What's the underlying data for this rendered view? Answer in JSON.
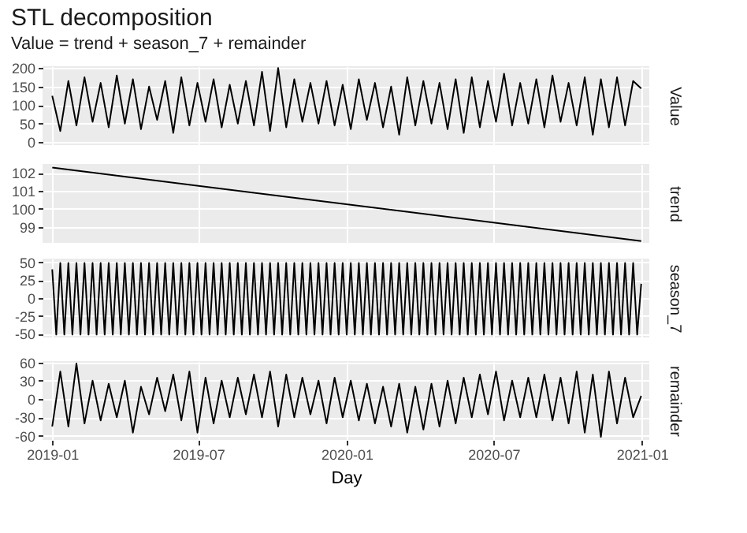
{
  "chart_data": [
    {
      "type": "line",
      "title": "STL decomposition",
      "subtitle": "Value = trend + season_7 + remainder",
      "ylabel": "Value",
      "xlim": [
        "2018-12-20",
        "2021-01-10"
      ],
      "xticks": [
        "2019-01",
        "2019-07",
        "2020-01",
        "2020-07",
        "2021-01"
      ],
      "ylim": [
        -8,
        205
      ],
      "yticks": [
        0,
        50,
        100,
        150,
        200
      ],
      "grid": true,
      "tick_labels": "y",
      "x": [
        "2019-01-01",
        "2019-01-11",
        "2019-01-21",
        "2019-01-31",
        "2019-02-10",
        "2019-02-20",
        "2019-03-02",
        "2019-03-12",
        "2019-03-22",
        "2019-04-01",
        "2019-04-11",
        "2019-04-21",
        "2019-05-01",
        "2019-05-11",
        "2019-05-21",
        "2019-05-31",
        "2019-06-10",
        "2019-06-20",
        "2019-06-30",
        "2019-07-10",
        "2019-07-20",
        "2019-07-30",
        "2019-08-09",
        "2019-08-19",
        "2019-08-29",
        "2019-09-08",
        "2019-09-18",
        "2019-09-28",
        "2019-10-08",
        "2019-10-18",
        "2019-10-28",
        "2019-11-07",
        "2019-11-17",
        "2019-11-27",
        "2019-12-07",
        "2019-12-17",
        "2019-12-27",
        "2020-01-06",
        "2020-01-16",
        "2020-01-26",
        "2020-02-05",
        "2020-02-15",
        "2020-02-25",
        "2020-03-06",
        "2020-03-16",
        "2020-03-26",
        "2020-04-05",
        "2020-04-15",
        "2020-04-25",
        "2020-05-05",
        "2020-05-15",
        "2020-05-25",
        "2020-06-04",
        "2020-06-14",
        "2020-06-24",
        "2020-07-04",
        "2020-07-14",
        "2020-07-24",
        "2020-08-03",
        "2020-08-13",
        "2020-08-23",
        "2020-09-02",
        "2020-09-12",
        "2020-09-22",
        "2020-10-02",
        "2020-10-12",
        "2020-10-22",
        "2020-11-01",
        "2020-11-11",
        "2020-11-21",
        "2020-12-01",
        "2020-12-11",
        "2020-12-21",
        "2020-12-31"
      ],
      "series": [
        {
          "color": "#000000",
          "values": [
            125,
            30,
            165,
            45,
            175,
            55,
            160,
            40,
            180,
            50,
            170,
            35,
            150,
            60,
            165,
            25,
            175,
            45,
            160,
            55,
            170,
            40,
            155,
            50,
            165,
            45,
            190,
            30,
            200,
            40,
            170,
            55,
            160,
            50,
            165,
            45,
            155,
            35,
            170,
            60,
            160,
            40,
            150,
            20,
            175,
            45,
            165,
            50,
            160,
            35,
            170,
            25,
            175,
            40,
            165,
            55,
            185,
            45,
            160,
            50,
            170,
            40,
            180,
            55,
            160,
            45,
            175,
            20,
            170,
            40,
            175,
            45,
            165,
            145
          ]
        }
      ]
    },
    {
      "type": "line",
      "ylabel": "trend",
      "xlim": [
        "2018-12-20",
        "2021-01-10"
      ],
      "xticks": [
        "2019-01",
        "2019-07",
        "2020-01",
        "2020-07",
        "2021-01"
      ],
      "ylim": [
        98.1,
        102.5
      ],
      "yticks": [
        99,
        100,
        101,
        102
      ],
      "grid": true,
      "tick_labels": "y",
      "x": [
        "2019-01-01",
        "2020-12-31"
      ],
      "series": [
        {
          "color": "#000000",
          "values": [
            102.3,
            98.2
          ]
        }
      ]
    },
    {
      "type": "line",
      "ylabel": "season_7",
      "xlim": [
        "2018-12-20",
        "2021-01-10"
      ],
      "xticks": [
        "2019-01",
        "2019-07",
        "2020-01",
        "2020-07",
        "2021-01"
      ],
      "ylim": [
        -55,
        55
      ],
      "yticks": [
        -50,
        -25,
        0,
        25,
        50
      ],
      "grid": true,
      "tick_labels": "y",
      "x": [
        "2019-01-01",
        "2019-01-06",
        "2019-01-11",
        "2019-01-16",
        "2019-01-21",
        "2019-01-26",
        "2019-01-31",
        "2019-02-05",
        "2019-02-10",
        "2019-02-15",
        "2019-02-20",
        "2019-02-25",
        "2019-03-02",
        "2019-03-07",
        "2019-03-12",
        "2019-03-17",
        "2019-03-22",
        "2019-03-27",
        "2019-04-01",
        "2019-04-06",
        "2019-04-11",
        "2019-04-16",
        "2019-04-21",
        "2019-04-26",
        "2019-05-01",
        "2019-05-06",
        "2019-05-11",
        "2019-05-16",
        "2019-05-21",
        "2019-05-26",
        "2019-05-31",
        "2019-06-05",
        "2019-06-10",
        "2019-06-15",
        "2019-06-20",
        "2019-06-25",
        "2019-06-30",
        "2019-07-05",
        "2019-07-10",
        "2019-07-15",
        "2019-07-20",
        "2019-07-25",
        "2019-07-30",
        "2019-08-04",
        "2019-08-09",
        "2019-08-14",
        "2019-08-19",
        "2019-08-24",
        "2019-08-29",
        "2019-09-03",
        "2019-09-08",
        "2019-09-13",
        "2019-09-18",
        "2019-09-23",
        "2019-09-28",
        "2019-10-03",
        "2019-10-08",
        "2019-10-13",
        "2019-10-18",
        "2019-10-23",
        "2019-10-28",
        "2019-11-02",
        "2019-11-07",
        "2019-11-12",
        "2019-11-17",
        "2019-11-22",
        "2019-11-27",
        "2019-12-02",
        "2019-12-07",
        "2019-12-12",
        "2019-12-17",
        "2019-12-22",
        "2019-12-27",
        "2020-01-01",
        "2020-01-06",
        "2020-01-11",
        "2020-01-16",
        "2020-01-21",
        "2020-01-26",
        "2020-01-31",
        "2020-02-05",
        "2020-02-10",
        "2020-02-15",
        "2020-02-20",
        "2020-02-25",
        "2020-03-01",
        "2020-03-06",
        "2020-03-11",
        "2020-03-16",
        "2020-03-21",
        "2020-03-26",
        "2020-03-31",
        "2020-04-05",
        "2020-04-10",
        "2020-04-15",
        "2020-04-20",
        "2020-04-25",
        "2020-04-30",
        "2020-05-05",
        "2020-05-10",
        "2020-05-15",
        "2020-05-20",
        "2020-05-25",
        "2020-05-30",
        "2020-06-04",
        "2020-06-09",
        "2020-06-14",
        "2020-06-19",
        "2020-06-24",
        "2020-06-29",
        "2020-07-04",
        "2020-07-09",
        "2020-07-14",
        "2020-07-19",
        "2020-07-24",
        "2020-07-29",
        "2020-08-03",
        "2020-08-08",
        "2020-08-13",
        "2020-08-18",
        "2020-08-23",
        "2020-08-28",
        "2020-09-02",
        "2020-09-07",
        "2020-09-12",
        "2020-09-17",
        "2020-09-22",
        "2020-09-27",
        "2020-10-02",
        "2020-10-07",
        "2020-10-12",
        "2020-10-17",
        "2020-10-22",
        "2020-10-27",
        "2020-11-01",
        "2020-11-06",
        "2020-11-11",
        "2020-11-16",
        "2020-11-21",
        "2020-11-26",
        "2020-12-01",
        "2020-12-06",
        "2020-12-11",
        "2020-12-16",
        "2020-12-21",
        "2020-12-26",
        "2020-12-31"
      ],
      "series": [
        {
          "color": "#000000",
          "values": [
            40,
            -51,
            49,
            -51,
            49,
            -51,
            49,
            -51,
            49,
            -51,
            49,
            -51,
            49,
            -51,
            49,
            -51,
            49,
            -51,
            49,
            -51,
            49,
            -51,
            49,
            -51,
            49,
            -51,
            49,
            -51,
            49,
            -51,
            49,
            -51,
            49,
            -51,
            49,
            -51,
            49,
            -51,
            49,
            -51,
            49,
            -51,
            49,
            -51,
            49,
            -51,
            49,
            -51,
            49,
            -51,
            49,
            -51,
            49,
            -51,
            49,
            -51,
            49,
            -51,
            49,
            -51,
            49,
            -51,
            49,
            -51,
            49,
            -51,
            49,
            -51,
            49,
            -51,
            49,
            -51,
            49,
            -51,
            49,
            -51,
            49,
            -51,
            49,
            -51,
            49,
            -51,
            49,
            -51,
            49,
            -51,
            49,
            -51,
            49,
            -51,
            49,
            -51,
            49,
            -51,
            49,
            -51,
            49,
            -51,
            49,
            -51,
            49,
            -51,
            49,
            -51,
            49,
            -51,
            49,
            -51,
            49,
            -51,
            49,
            -51,
            49,
            -51,
            49,
            -51,
            49,
            -51,
            49,
            -51,
            49,
            -51,
            49,
            -51,
            49,
            -51,
            49,
            -51,
            49,
            -51,
            49,
            -51,
            49,
            -51,
            49,
            -51,
            49,
            -51,
            49,
            -51,
            49,
            -51,
            49,
            -51,
            49,
            -51,
            20
          ]
        }
      ]
    },
    {
      "type": "line",
      "ylabel": "remainder",
      "xlabel": "Day",
      "xlim": [
        "2018-12-20",
        "2021-01-10"
      ],
      "xticks": [
        "2019-01",
        "2019-07",
        "2020-01",
        "2020-07",
        "2021-01"
      ],
      "ylim": [
        -67,
        62
      ],
      "yticks": [
        -60,
        -30,
        0,
        30,
        60
      ],
      "grid": true,
      "x": [
        "2019-01-01",
        "2019-01-11",
        "2019-01-21",
        "2019-01-31",
        "2019-02-10",
        "2019-02-20",
        "2019-03-02",
        "2019-03-12",
        "2019-03-22",
        "2019-04-01",
        "2019-04-11",
        "2019-04-21",
        "2019-05-01",
        "2019-05-11",
        "2019-05-21",
        "2019-05-31",
        "2019-06-10",
        "2019-06-20",
        "2019-06-30",
        "2019-07-10",
        "2019-07-20",
        "2019-07-30",
        "2019-08-09",
        "2019-08-19",
        "2019-08-29",
        "2019-09-08",
        "2019-09-18",
        "2019-09-28",
        "2019-10-08",
        "2019-10-18",
        "2019-10-28",
        "2019-11-07",
        "2019-11-17",
        "2019-11-27",
        "2019-12-07",
        "2019-12-17",
        "2019-12-27",
        "2020-01-06",
        "2020-01-16",
        "2020-01-26",
        "2020-02-05",
        "2020-02-15",
        "2020-02-25",
        "2020-03-06",
        "2020-03-16",
        "2020-03-26",
        "2020-04-05",
        "2020-04-15",
        "2020-04-25",
        "2020-05-05",
        "2020-05-15",
        "2020-05-25",
        "2020-06-04",
        "2020-06-14",
        "2020-06-24",
        "2020-07-04",
        "2020-07-14",
        "2020-07-24",
        "2020-08-03",
        "2020-08-13",
        "2020-08-23",
        "2020-09-02",
        "2020-09-12",
        "2020-09-22",
        "2020-10-02",
        "2020-10-12",
        "2020-10-22",
        "2020-11-01",
        "2020-11-11",
        "2020-11-21",
        "2020-12-01",
        "2020-12-11",
        "2020-12-21",
        "2020-12-31"
      ],
      "series": [
        {
          "color": "#000000",
          "values": [
            -45,
            45,
            -45,
            58,
            -40,
            30,
            -35,
            25,
            -30,
            30,
            -55,
            20,
            -25,
            35,
            -20,
            40,
            -35,
            45,
            -55,
            35,
            -40,
            30,
            -30,
            35,
            -25,
            40,
            -30,
            45,
            -45,
            40,
            -30,
            35,
            -25,
            30,
            -40,
            35,
            -30,
            30,
            -35,
            25,
            -40,
            20,
            -45,
            25,
            -55,
            20,
            -50,
            25,
            -45,
            30,
            -40,
            35,
            -30,
            40,
            -25,
            45,
            -35,
            30,
            -30,
            35,
            -30,
            40,
            -35,
            35,
            -40,
            45,
            -55,
            40,
            -62,
            45,
            -40,
            35,
            -30,
            5
          ]
        }
      ]
    }
  ]
}
